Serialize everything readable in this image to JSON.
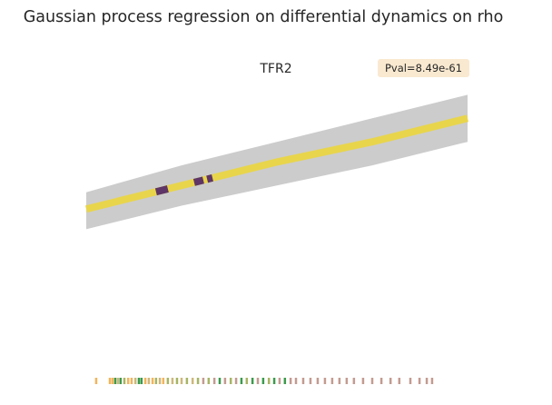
{
  "chart_data": {
    "type": "line",
    "title": "Gaussian process regression on differential dynamics on rho",
    "subtitle": "TFR2",
    "annotation": "Pval=8.49e-61",
    "xlim": [
      0,
      1
    ],
    "ylim": [
      0,
      1
    ],
    "x": [
      0,
      0.25,
      0.5,
      0.75,
      1
    ],
    "values": [
      0.54,
      0.61,
      0.68,
      0.74,
      0.81
    ],
    "color": "#e8d54c",
    "band": {
      "lower": [
        0.48,
        0.55,
        0.61,
        0.67,
        0.74
      ],
      "upper": [
        0.59,
        0.67,
        0.74,
        0.81,
        0.88
      ],
      "color": "#cccccc"
    },
    "highlights": [
      {
        "x": [
          0.183,
          0.214
        ],
        "color": "#5e3566"
      },
      {
        "x": [
          0.283,
          0.307
        ],
        "color": "#5e3566"
      },
      {
        "x": [
          0.317,
          0.331
        ],
        "color": "#5e3566"
      }
    ],
    "rug": {
      "x": [
        0.026,
        0.062,
        0.069,
        0.076,
        0.083,
        0.09,
        0.1,
        0.11,
        0.119,
        0.129,
        0.138,
        0.145,
        0.155,
        0.164,
        0.174,
        0.183,
        0.193,
        0.202,
        0.214,
        0.226,
        0.238,
        0.25,
        0.264,
        0.279,
        0.293,
        0.307,
        0.321,
        0.336,
        0.35,
        0.364,
        0.379,
        0.393,
        0.407,
        0.421,
        0.436,
        0.45,
        0.464,
        0.479,
        0.493,
        0.507,
        0.521,
        0.536,
        0.55,
        0.569,
        0.588,
        0.607,
        0.626,
        0.645,
        0.664,
        0.683,
        0.702,
        0.726,
        0.75,
        0.774,
        0.798,
        0.821,
        0.85,
        0.874,
        0.893,
        0.907
      ],
      "colors": [
        "#f2b45a",
        "#f2b45a",
        "#f2b45a",
        "#3c9a4c",
        "#cdb77a",
        "#3c9a4c",
        "#a8b463",
        "#f2b45a",
        "#f2b45a",
        "#cdb77a",
        "#3c9a4c",
        "#3c9a4c",
        "#f2b45a",
        "#cdb77a",
        "#f2b45a",
        "#a8b463",
        "#cdb77a",
        "#f2b45a",
        "#a8b463",
        "#cdb77a",
        "#a8b463",
        "#cdb77a",
        "#a8b463",
        "#cdb77a",
        "#a8b463",
        "#c39b90",
        "#a8b463",
        "#c39b90",
        "#3c9a4c",
        "#c39b90",
        "#a8b463",
        "#c39b90",
        "#3c9a4c",
        "#a8b463",
        "#3c9a4c",
        "#c39b90",
        "#3c9a4c",
        "#a8b463",
        "#3c9a4c",
        "#c39b90",
        "#3c9a4c",
        "#c39b90",
        "#c39b90",
        "#c39b90",
        "#c39b90",
        "#c39b90",
        "#c39b90",
        "#c39b90",
        "#c39b90",
        "#c39b90",
        "#c39b90",
        "#c39b90",
        "#c39b90",
        "#c39b90",
        "#c39b90",
        "#c39b90",
        "#c39b90",
        "#c39b90",
        "#c39b90",
        "#c39b90"
      ]
    }
  }
}
